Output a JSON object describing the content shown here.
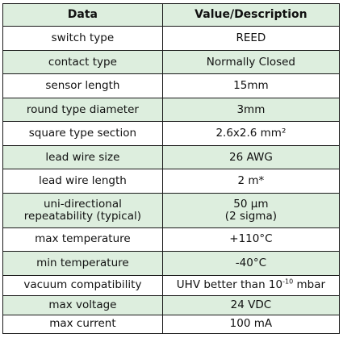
{
  "headers": {
    "data": "Data",
    "value": "Value/Description"
  },
  "rows": [
    {
      "label": "switch type",
      "value": "REED"
    },
    {
      "label": "contact type",
      "value": "Normally Closed"
    },
    {
      "label": "sensor length",
      "value": "15mm"
    },
    {
      "label": "round type diameter",
      "value": "3mm"
    },
    {
      "label": "square type section",
      "value": "2.6x2.6 mm²"
    },
    {
      "label": "lead wire size",
      "value": "26 AWG"
    },
    {
      "label": "lead wire length",
      "value": "2 m*"
    },
    {
      "label_line1": "uni-directional",
      "label_line2": "repeatability (typical)",
      "value_line1": "50 µm",
      "value_line2": "(2 sigma)"
    },
    {
      "label": "max temperature",
      "value": "+110°C"
    },
    {
      "label": "min temperature",
      "value": "-40°C"
    },
    {
      "label": "vacuum compatibility",
      "value_prefix": "UHV better than 10",
      "value_exp": "-10",
      "value_suffix": " mbar"
    },
    {
      "label": "max voltage",
      "value": "24 VDC"
    },
    {
      "label": "max current",
      "value": "100 mA"
    }
  ],
  "colors": {
    "stripe": "#ddeede",
    "border": "#1a1a1a"
  }
}
